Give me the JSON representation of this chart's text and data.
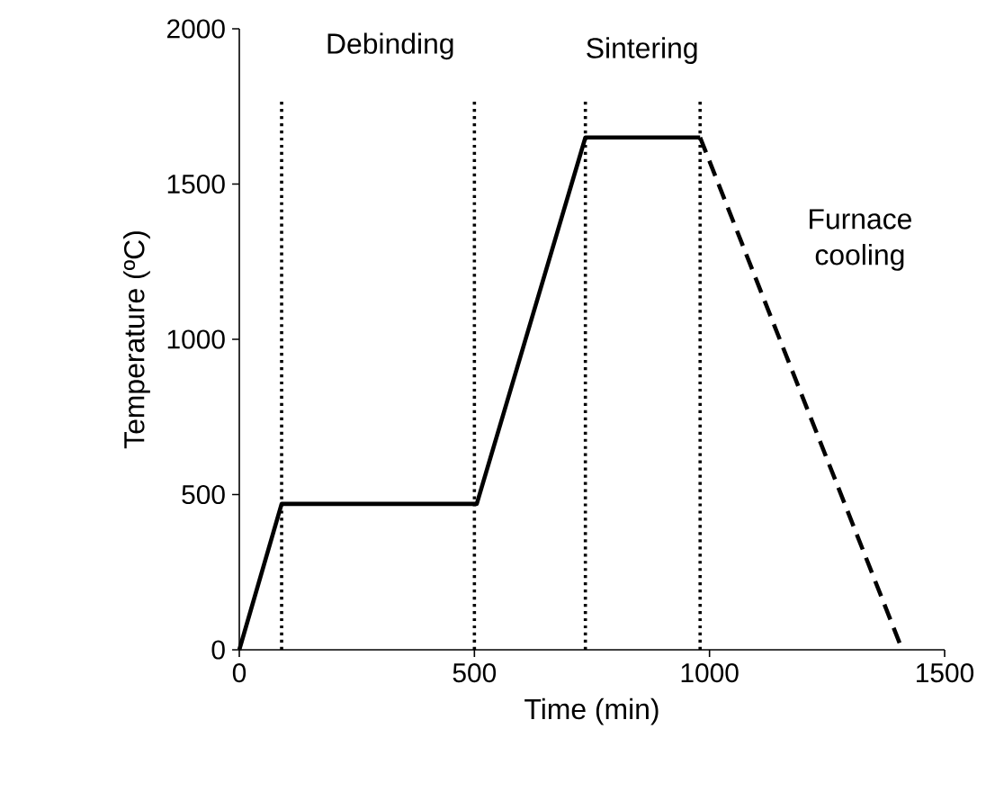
{
  "chart_data": {
    "type": "line",
    "xlabel": "Time (min)",
    "ylabel": "Temperature (ºC)",
    "series": [
      {
        "color": "#000000",
        "line_style": "solid",
        "x": [
          0,
          90,
          505,
          736,
          980
        ],
        "values": [
          0,
          470,
          470,
          1650,
          1650
        ]
      },
      {
        "color": "#000000",
        "line_style": "dashed",
        "x": [
          980,
          1410
        ],
        "values": [
          1650,
          0
        ]
      }
    ],
    "xlim": [
      0,
      1500
    ],
    "ylim": [
      0,
      2000
    ],
    "xticks": [
      0,
      500,
      1000,
      1500
    ],
    "yticks": [
      0,
      500,
      1000,
      1500,
      2000
    ],
    "ref_lines": [
      {
        "axis": "x",
        "value": 90,
        "line_style": "dotted",
        "color": "#000000"
      },
      {
        "axis": "x",
        "value": 500,
        "line_style": "dotted",
        "color": "#000000"
      },
      {
        "axis": "x",
        "value": 736,
        "line_style": "dotted",
        "color": "#000000"
      },
      {
        "axis": "x",
        "value": 980,
        "line_style": "dotted",
        "color": "#000000"
      }
    ],
    "annotations": [
      "Debinding",
      "Sintering",
      "Furnace cooling"
    ],
    "grid": false,
    "marker": "none"
  }
}
